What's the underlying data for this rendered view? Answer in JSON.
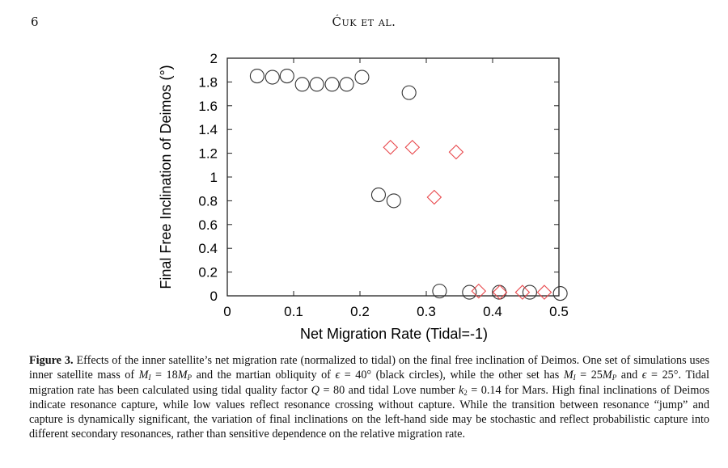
{
  "page": {
    "number": "6",
    "running_head": "Ćuk et al."
  },
  "chart_data": {
    "type": "scatter",
    "title": "",
    "xlabel": "Net Migration Rate (Tidal=-1)",
    "ylabel": "Final Free Inclination of Deimos (°)",
    "xlim": [
      0,
      0.5
    ],
    "ylim": [
      0,
      2
    ],
    "xticks": [
      "0",
      "0.1",
      "0.2",
      "0.3",
      "0.4",
      "0.5"
    ],
    "yticks": [
      "0",
      "0.2",
      "0.4",
      "0.6",
      "0.8",
      "1",
      "1.2",
      "1.4",
      "1.6",
      "1.8",
      "2"
    ],
    "grid": false,
    "series": [
      {
        "name": "M_I = 18M_P, ε = 40° (black circles)",
        "marker": "circle",
        "color": "#333333",
        "points": [
          [
            0.045,
            1.85
          ],
          [
            0.068,
            1.84
          ],
          [
            0.09,
            1.85
          ],
          [
            0.113,
            1.78
          ],
          [
            0.135,
            1.78
          ],
          [
            0.158,
            1.78
          ],
          [
            0.18,
            1.78
          ],
          [
            0.203,
            1.84
          ],
          [
            0.274,
            1.71
          ],
          [
            0.228,
            0.85
          ],
          [
            0.251,
            0.8
          ],
          [
            0.32,
            0.04
          ],
          [
            0.365,
            0.03
          ],
          [
            0.41,
            0.03
          ],
          [
            0.456,
            0.03
          ],
          [
            0.502,
            0.02
          ]
        ]
      },
      {
        "name": "M_I = 25M_P, ε = 25°",
        "marker": "diamond",
        "color": "#e8464a",
        "points": [
          [
            0.246,
            1.25
          ],
          [
            0.279,
            1.25
          ],
          [
            0.345,
            1.21
          ],
          [
            0.312,
            0.83
          ],
          [
            0.379,
            0.04
          ],
          [
            0.411,
            0.03
          ],
          [
            0.445,
            0.03
          ],
          [
            0.478,
            0.03
          ]
        ]
      }
    ]
  },
  "caption": {
    "label": "Figure 3.",
    "t1": " Effects of the inner satellite’s net migration rate (normalized to tidal) on the final free inclination of Deimos. One set of simulations uses inner satellite mass of ",
    "m1": "M",
    "s1": "I",
    "t2": " = 18",
    "m2": "M",
    "s2": "P",
    "t3": " and the martian obliquity of ",
    "e1": "ϵ",
    "t4": " = 40° (black circles), while the other set has ",
    "m3": "M",
    "s3": "I",
    "t5": " = 25",
    "m4": "M",
    "s4": "P",
    "t6": " and ",
    "e2": "ϵ",
    "t7": " = 25°. Tidal migration rate has been calculated using tidal quality factor ",
    "q": "Q",
    "t8": " = 80 and tidal Love number ",
    "k": "k",
    "s5": "2",
    "t9": " = 0.14 for Mars. High final inclinations of Deimos indicate resonance capture, while low values reflect resonance crossing without capture. While the transition between resonance “jump” and capture is dynamically significant, the variation of final inclinations on the left-hand side may be stochastic and reflect probabilistic capture into different secondary resonances, rather than sensitive dependence on the relative migration rate."
  }
}
